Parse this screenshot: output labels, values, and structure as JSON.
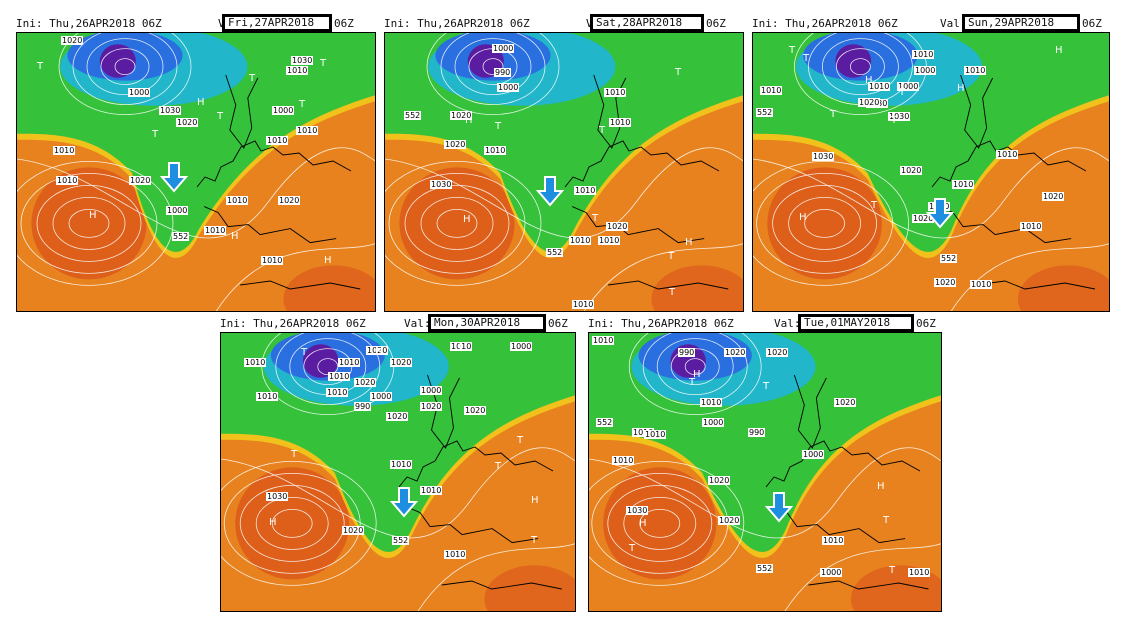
{
  "colors": {
    "warm_orange": "#e8821e",
    "hot_red": "#d9531a",
    "yellow": "#f1c21b",
    "green": "#35c13a",
    "cyan": "#21b6c9",
    "blue": "#2a6fe0",
    "deep_purple": "#5a1ca0",
    "arrow": "#1e8fe0"
  },
  "panels": [
    {
      "init": "Ini: Thu,26APR2018 06Z",
      "valid_prefix": "Val:",
      "valid": "Fri,27APR2018",
      "valid_suffix": "06Z",
      "labels": [
        "1020",
        "1010",
        "1000",
        "1030",
        "1020",
        "1010",
        "1000",
        "1010",
        "1020",
        "1010",
        "1030",
        "1010",
        "1010",
        "1000",
        "1010",
        "552",
        "1020",
        "1010"
      ],
      "centers": [
        "T",
        "T",
        "T",
        "T",
        "H",
        "H",
        "H",
        "T",
        "H",
        "T"
      ]
    },
    {
      "init": "Ini: Thu,26APR2018 06Z",
      "valid_prefix": "Val:",
      "valid": "Sat,28APR2018",
      "valid_suffix": "06Z",
      "labels": [
        "1000",
        "990",
        "1000",
        "1010",
        "552",
        "1020",
        "1010",
        "1020",
        "1010",
        "1030",
        "1010",
        "552",
        "1010",
        "1020",
        "1010",
        "1010"
      ],
      "centers": [
        "H",
        "T",
        "T",
        "T",
        "H",
        "T",
        "H",
        "T",
        "T"
      ]
    },
    {
      "init": "Ini: Thu,26APR2018 06Z",
      "valid_prefix": "Val:",
      "valid": "Sun,29APR2018",
      "valid_suffix": "06Z",
      "labels": [
        "1010",
        "1010",
        "1000",
        "1010",
        "1030",
        "1000",
        "1020",
        "1030",
        "1010",
        "552",
        "1020",
        "1010",
        "1030",
        "1020",
        "1010",
        "1010",
        "1020",
        "1010",
        "552",
        "1020",
        "1010"
      ],
      "centers": [
        "T",
        "H",
        "T",
        "H",
        "T",
        "H",
        "T",
        "T",
        "H",
        "T"
      ]
    },
    {
      "init": "Ini: Thu,26APR2018 06Z",
      "valid_prefix": "Val:",
      "valid": "Mon,30APR2018",
      "valid_suffix": "06Z",
      "labels": [
        "1010",
        "1020",
        "1010",
        "1020",
        "1000",
        "1010",
        "1010",
        "1020",
        "1000",
        "1010",
        "990",
        "1020",
        "1010",
        "1020",
        "1000",
        "1020",
        "1010",
        "1030",
        "1020",
        "552",
        "1010",
        "1010"
      ],
      "centers": [
        "T",
        "T",
        "H",
        "T",
        "H",
        "T",
        "T",
        "H",
        "T"
      ]
    },
    {
      "init": "Ini: Thu,26APR2018 06Z",
      "valid_prefix": "Val:",
      "valid": "Tue,01MAY2018",
      "valid_suffix": "06Z",
      "labels": [
        "1010",
        "990",
        "1020",
        "1020",
        "552",
        "1010",
        "1010",
        "1010",
        "1000",
        "990",
        "1010",
        "1020",
        "1000",
        "1020",
        "1030",
        "1020",
        "1010",
        "552",
        "1000",
        "1010"
      ],
      "centers": [
        "H",
        "T",
        "T",
        "H",
        "T",
        "H",
        "T",
        "T"
      ]
    }
  ]
}
